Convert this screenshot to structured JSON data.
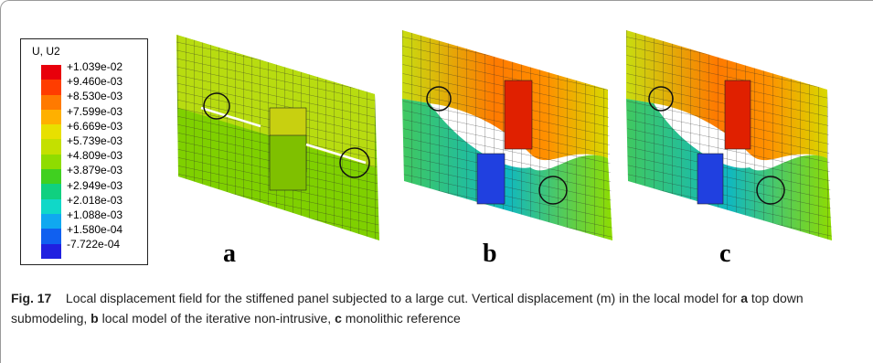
{
  "legend": {
    "title": "U, U2",
    "colors": [
      "#e8000b",
      "#ff3d00",
      "#ff7a00",
      "#ffb000",
      "#e8e000",
      "#c4e000",
      "#8fdc00",
      "#40d020",
      "#10d080",
      "#10d8c8",
      "#10a8f0",
      "#1060f0",
      "#2020e0"
    ],
    "labels": [
      "+1.039e-02",
      "+9.460e-03",
      "+8.530e-03",
      "+7.599e-03",
      "+6.669e-03",
      "+5.739e-03",
      "+4.809e-03",
      "+3.879e-03",
      "+2.949e-03",
      "+2.018e-03",
      "+1.088e-03",
      "+1.580e-04",
      "-7.722e-04"
    ]
  },
  "subfigures": [
    {
      "label": "a"
    },
    {
      "label": "b"
    },
    {
      "label": "c"
    }
  ],
  "caption": {
    "fig_label": "Fig. 17",
    "text_1": "Local displacement field for the stiffened panel subjected to a large cut. Vertical displacement (m) in the local model for ",
    "a": "a",
    "text_a": " top down submodeling, ",
    "b": "b",
    "text_b": " local model of the iterative non-intrusive, ",
    "c": "c",
    "text_c": " monolithic reference"
  }
}
